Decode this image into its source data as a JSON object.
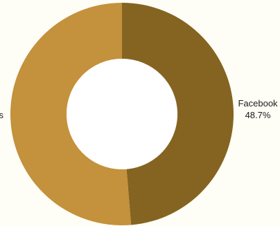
{
  "chart_data": {
    "type": "pie",
    "donut": true,
    "title": "",
    "legend": "none",
    "slices": [
      {
        "label": "Facebook",
        "value": 48.7,
        "value_label": "48.7%",
        "color": "#856422"
      },
      {
        "label": "s",
        "value": 51.3,
        "value_label": "",
        "color": "#c4913c"
      }
    ]
  }
}
